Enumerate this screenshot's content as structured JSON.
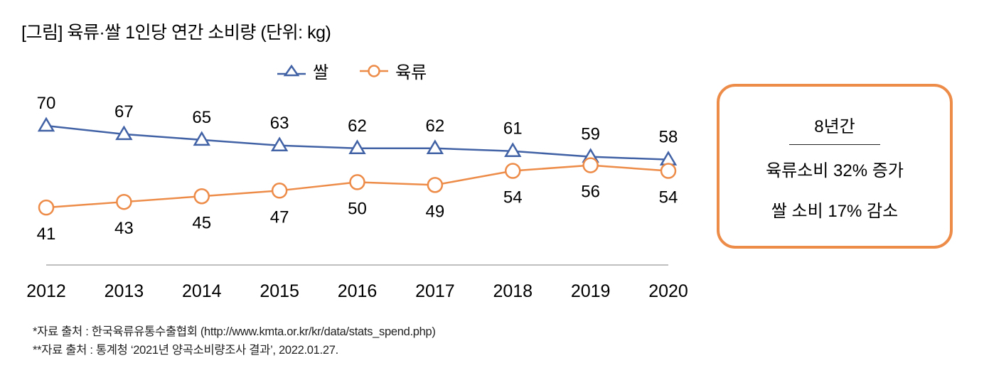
{
  "title": "[그림] 육류·쌀 1인당 연간 소비량 (단위: kg)",
  "legend": [
    {
      "label": "쌀",
      "marker": "triangle-icon",
      "color": "#4262A6"
    },
    {
      "label": "육류",
      "marker": "circle-icon",
      "color": "#ED8B48"
    }
  ],
  "summary_box": {
    "heading": "8년간",
    "line1": "육류소비 32% 증가",
    "line2": "쌀 소비 17% 감소",
    "border_color": "#ED8B48"
  },
  "sources": [
    "*자료 출처 : 한국육류유통수출협회 (http://www.kmta.or.kr/kr/data/stats_spend.php)",
    "**자료 출처 : 통계청 ‘2021년 양곡소비량조사 결과’, 2022.01.27."
  ],
  "chart_data": {
    "type": "line",
    "title": "[그림] 육류·쌀 1인당 연간 소비량 (단위: kg)",
    "xlabel": "",
    "ylabel": "",
    "x": [
      "2012",
      "2013",
      "2014",
      "2015",
      "2016",
      "2017",
      "2018",
      "2019",
      "2020"
    ],
    "series": [
      {
        "name": "쌀",
        "color": "#4262A6",
        "marker": "triangle",
        "label_position": "above",
        "values": [
          70,
          67,
          65,
          63,
          62,
          62,
          61,
          59,
          58
        ]
      },
      {
        "name": "육류",
        "color": "#ED8B48",
        "marker": "circle",
        "label_position": "below",
        "values": [
          41,
          43,
          45,
          47,
          50,
          49,
          54,
          56,
          54
        ]
      }
    ],
    "grid": false,
    "legend_position": "top"
  }
}
